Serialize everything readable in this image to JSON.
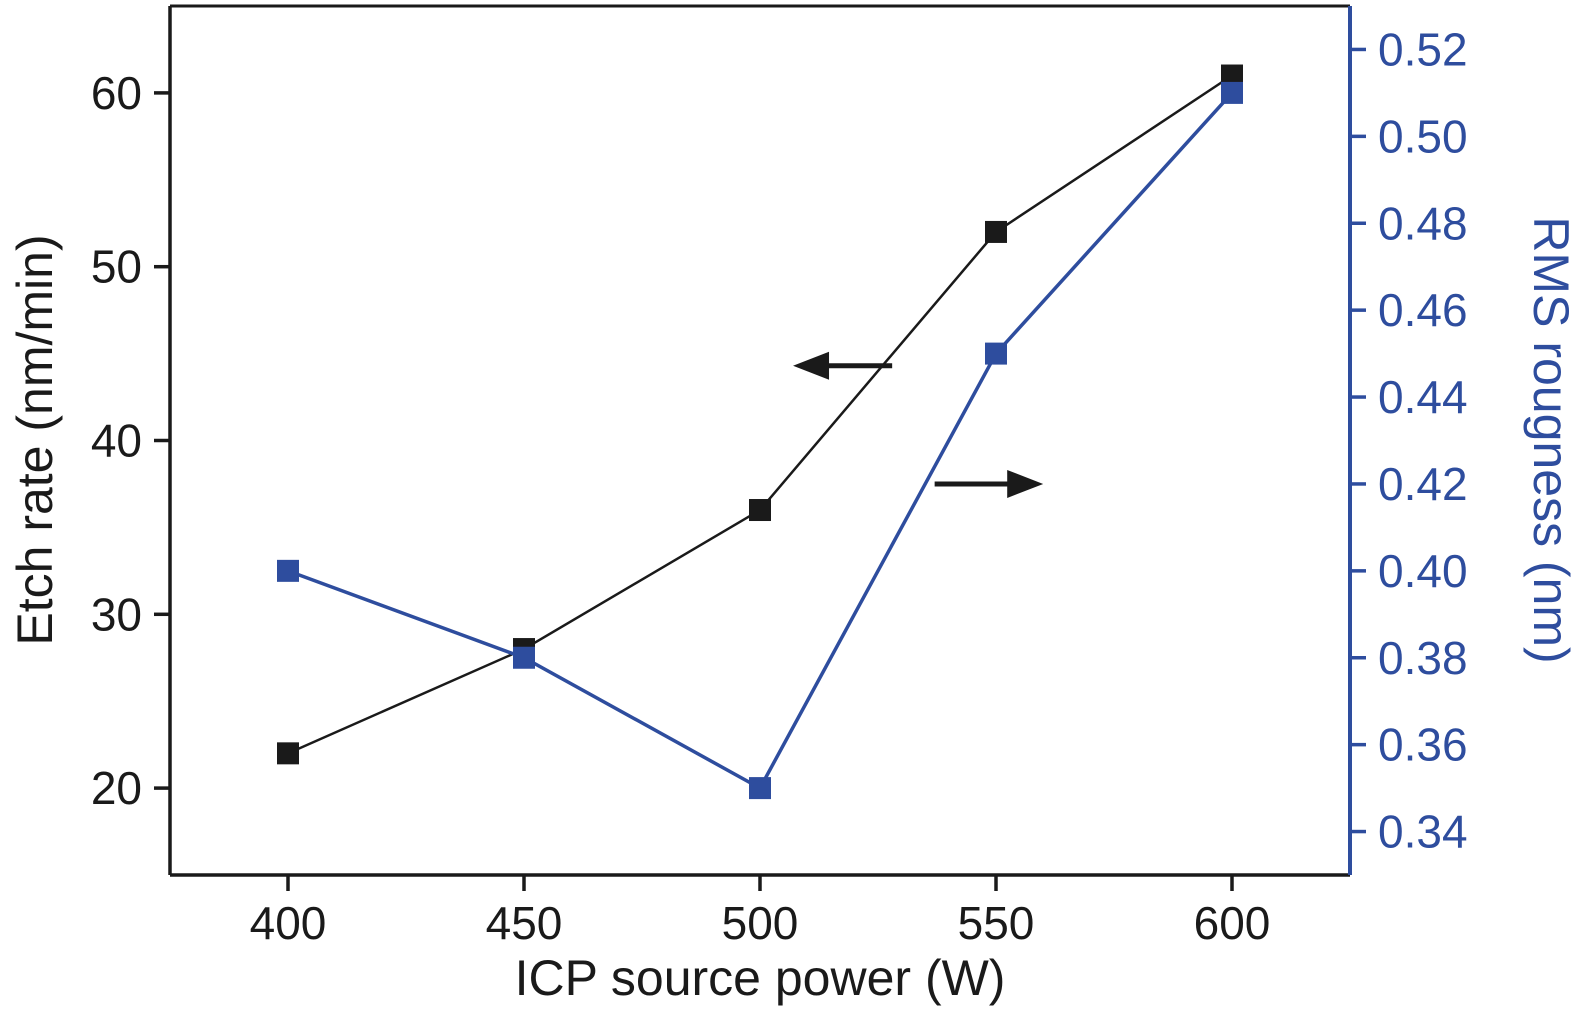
{
  "chart_data": {
    "type": "line",
    "title": "",
    "xlabel": "ICP source power (W)",
    "ylabel_left": "Etch rate (nm/min)",
    "ylabel_right": "RMS rougness (nm)",
    "x": [
      400,
      450,
      500,
      550,
      600
    ],
    "series": [
      {
        "name": "Etch rate",
        "axis": "left",
        "color": "#1a1a1a",
        "marker": "square",
        "line_width": 2.5,
        "values": [
          22,
          28,
          36,
          52,
          61
        ]
      },
      {
        "name": "RMS roughness",
        "axis": "right",
        "color": "#2e4d9e",
        "marker": "square",
        "line_width": 3.5,
        "values": [
          0.4,
          0.38,
          0.35,
          0.45,
          0.51
        ]
      }
    ],
    "xlim": [
      375,
      625
    ],
    "ylim_left": [
      15,
      65
    ],
    "ylim_right": [
      0.33,
      0.53
    ],
    "xticks": [
      400,
      450,
      500,
      550,
      600
    ],
    "yticks_left": [
      20,
      30,
      40,
      50,
      60
    ],
    "yticks_right": [
      0.34,
      0.36,
      0.38,
      0.4,
      0.42,
      0.44,
      0.46,
      0.48,
      0.5,
      0.52
    ],
    "grid": false,
    "legend": "none",
    "colors": {
      "left_axis": "#1a1a1a",
      "right_axis": "#2e4d9e",
      "background": "#ffffff"
    },
    "annotations": [
      {
        "type": "arrow",
        "axis": "left",
        "direction": "left",
        "x_from": 528,
        "x_to": 507,
        "y": 44.3,
        "color": "#1a1a1a",
        "meaning": "points to left axis for etch-rate curve"
      },
      {
        "type": "arrow",
        "axis": "right",
        "direction": "right",
        "x_from": 537,
        "x_to": 560,
        "y": 0.42,
        "color": "#1a1a1a",
        "meaning": "points to right axis for RMS-roughness curve"
      }
    ]
  }
}
